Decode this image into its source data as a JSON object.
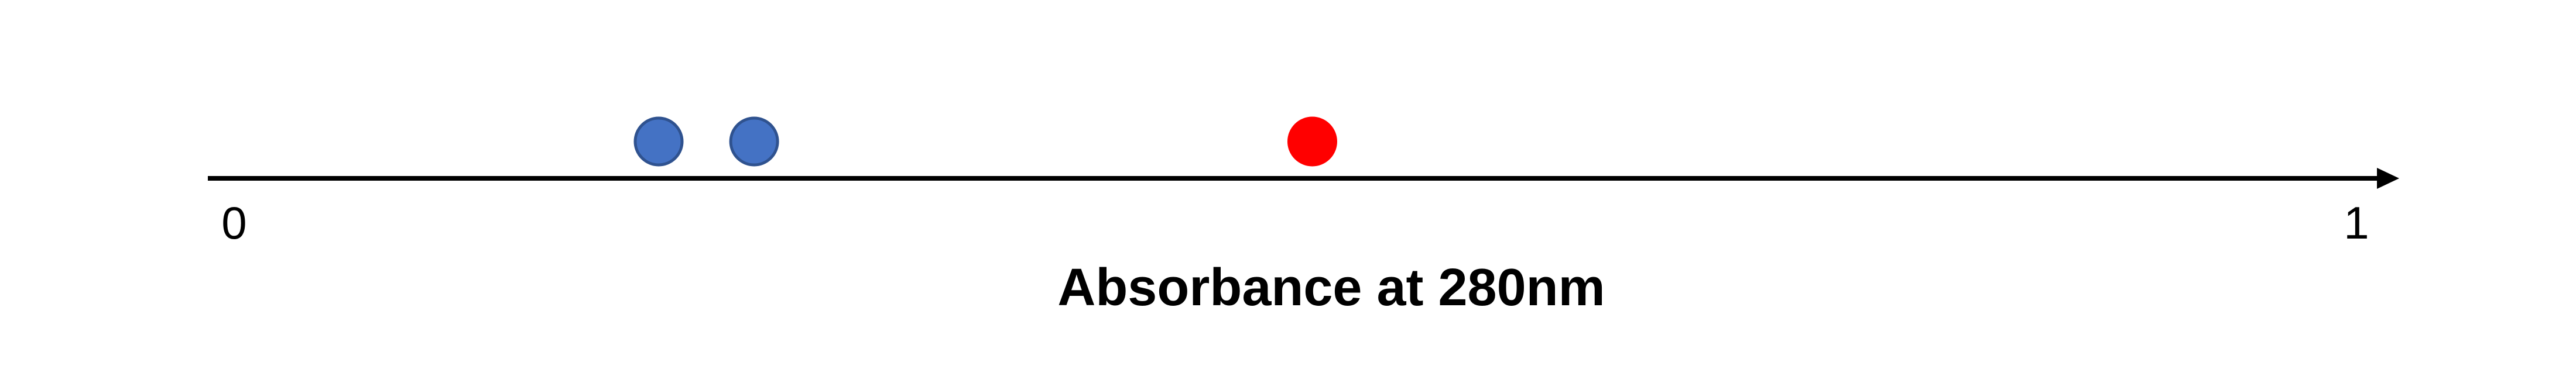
{
  "chart_data": {
    "type": "scatter",
    "title": "",
    "xlabel": "Absorbance at 280nm",
    "ylabel": "",
    "xlim": [
      0,
      1
    ],
    "x_ticks": [
      "0",
      "1"
    ],
    "grid": false,
    "legend": "none",
    "series": [
      {
        "color": "#4472C4",
        "stroke": "#2F528F",
        "points": [
          {
            "x": 0.2
          },
          {
            "x": 0.245
          }
        ]
      },
      {
        "color": "#FF0000",
        "stroke": "#FF0000",
        "points": [
          {
            "x": 0.508
          }
        ]
      }
    ]
  }
}
